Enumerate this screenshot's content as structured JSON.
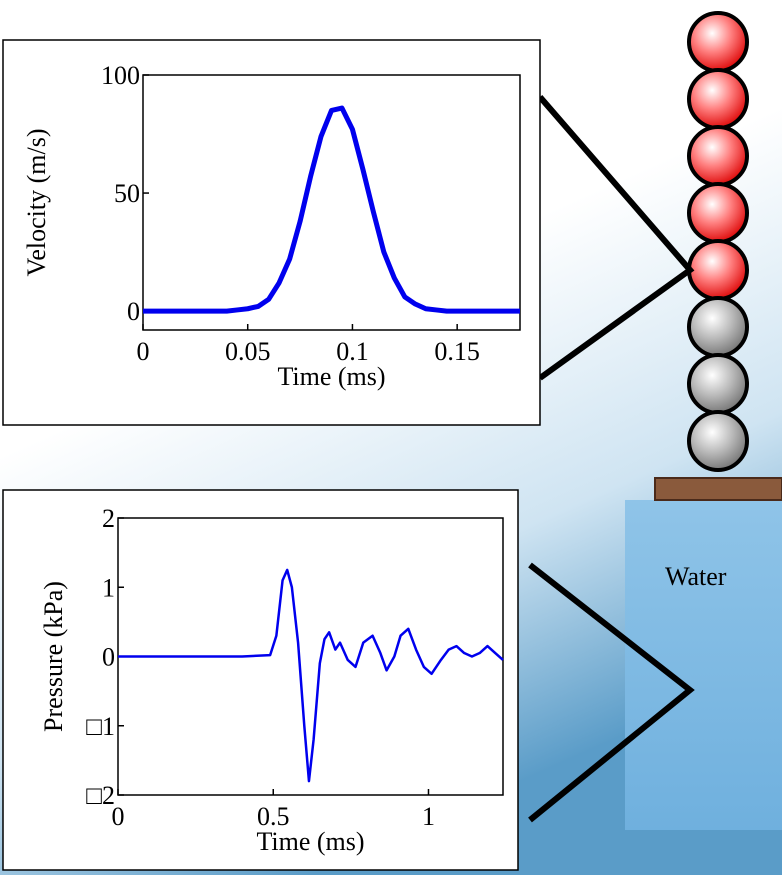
{
  "chart_data": [
    {
      "type": "line",
      "xlabel": "Time (ms)",
      "ylabel": "Velocity (m/s)",
      "color": "#0000ee",
      "x": [
        0,
        0.005,
        0.01,
        0.015,
        0.02,
        0.025,
        0.03,
        0.035,
        0.04,
        0.045,
        0.05,
        0.055,
        0.06,
        0.065,
        0.07,
        0.075,
        0.08,
        0.085,
        0.09,
        0.095,
        0.1,
        0.105,
        0.11,
        0.115,
        0.12,
        0.125,
        0.13,
        0.135,
        0.14,
        0.145,
        0.15,
        0.155,
        0.16,
        0.165,
        0.17,
        0.175,
        0.18
      ],
      "values": [
        0,
        0,
        0,
        0,
        0,
        0,
        0,
        0,
        0,
        0.5,
        1,
        2,
        5,
        12,
        22,
        38,
        57,
        74,
        85,
        86,
        77,
        60,
        42,
        25,
        14,
        6,
        3,
        1,
        0.5,
        0,
        0,
        0,
        0,
        0,
        0,
        0,
        0
      ],
      "xlim": [
        0,
        0.18
      ],
      "xticks": [
        0,
        0.05,
        0.1,
        0.15
      ],
      "ylim": [
        -8,
        100
      ],
      "yticks": [
        0,
        50,
        100
      ]
    },
    {
      "type": "line",
      "xlabel": "Time (ms)",
      "ylabel": "Pressure (kPa)",
      "color": "#0000ee",
      "x": [
        0,
        0.2,
        0.4,
        0.49,
        0.51,
        0.53,
        0.545,
        0.56,
        0.58,
        0.6,
        0.615,
        0.63,
        0.65,
        0.665,
        0.68,
        0.7,
        0.715,
        0.74,
        0.765,
        0.79,
        0.82,
        0.845,
        0.865,
        0.89,
        0.91,
        0.935,
        0.96,
        0.985,
        1.01,
        1.04,
        1.065,
        1.09,
        1.115,
        1.14,
        1.165,
        1.19,
        1.215,
        1.24
      ],
      "values": [
        0,
        0,
        0,
        0.02,
        0.3,
        1.1,
        1.25,
        1.0,
        0.2,
        -1.0,
        -1.8,
        -1.2,
        -0.1,
        0.25,
        0.35,
        0.1,
        0.2,
        -0.05,
        -0.15,
        0.2,
        0.3,
        0.05,
        -0.2,
        0,
        0.3,
        0.4,
        0.1,
        -0.15,
        -0.25,
        -0.05,
        0.1,
        0.15,
        0.05,
        0,
        0.05,
        0.15,
        0.05,
        -0.05
      ],
      "xlim": [
        0,
        1.24
      ],
      "xticks": [
        0,
        0.5,
        1
      ],
      "ylim": [
        -2,
        2
      ],
      "yticks": [
        {
          "value": -2,
          "label": "□2"
        },
        {
          "value": -1,
          "label": "□1"
        },
        0,
        1,
        2
      ]
    }
  ],
  "diagram": {
    "water_label": "Water"
  }
}
